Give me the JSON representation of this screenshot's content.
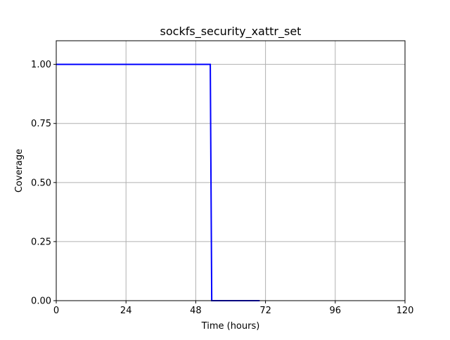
{
  "chart_data": {
    "type": "line",
    "title": "sockfs_security_xattr_set",
    "xlabel": "Time (hours)",
    "ylabel": "Coverage",
    "xlim": [
      0,
      120
    ],
    "ylim": [
      0,
      1.1
    ],
    "xticks": [
      0,
      24,
      48,
      72,
      96,
      120
    ],
    "xtick_labels": [
      "0",
      "24",
      "48",
      "72",
      "96",
      "120"
    ],
    "yticks": [
      0,
      0.25,
      0.5,
      0.75,
      1.0
    ],
    "ytick_labels": [
      "0.00",
      "0.25",
      "0.50",
      "0.75",
      "1.00"
    ],
    "grid": true,
    "legend": "none",
    "series": [
      {
        "color": "#0000ff",
        "x": [
          0,
          53,
          53.5,
          70
        ],
        "y": [
          1.0,
          1.0,
          0.0,
          0.0
        ]
      }
    ]
  }
}
